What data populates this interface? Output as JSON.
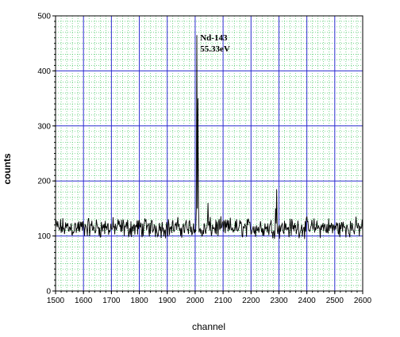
{
  "chart_data": {
    "type": "line",
    "xlabel": "channel",
    "ylabel": "counts",
    "xlim": [
      1500,
      2600
    ],
    "ylim": [
      0,
      500
    ],
    "x_ticks": [
      1500,
      1600,
      1700,
      1800,
      1900,
      2000,
      2100,
      2200,
      2300,
      2400,
      2500,
      2600
    ],
    "y_ticks": [
      0,
      100,
      200,
      300,
      400,
      500
    ],
    "grid": true,
    "line_color": "#000000",
    "major_grid_color": "#2b2bd0",
    "minor_grid_color": "#22bb44",
    "series": [
      {
        "baseline": 115,
        "noise_amplitude": 22,
        "channel_step": 2,
        "peaks": [
          {
            "x": 2006,
            "y": 465
          },
          {
            "x": 2010,
            "y": 350
          },
          {
            "x": 2046,
            "y": 160
          },
          {
            "x": 2292,
            "y": 185
          },
          {
            "x": 2288,
            "y": 150
          },
          {
            "x": 2475,
            "y": 148
          }
        ]
      }
    ],
    "annotations": [
      {
        "lines": [
          "Nd-143",
          "55.33eV"
        ],
        "x": 2018,
        "y": 455
      }
    ]
  }
}
